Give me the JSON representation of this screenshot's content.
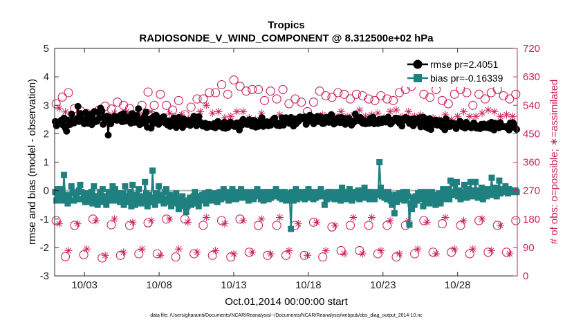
{
  "chart_data": {
    "type": "line",
    "title": "Tropics",
    "subtitle": "RADIOSONDE_V_WIND_COMPONENT @ 8.312500e+02 hPa",
    "xlabel": "Oct.01,2014 00:00:00 start",
    "ylabel_left": "rmse and bias (model - observation)",
    "ylabel_right": "# of obs: o=possible; ∗=assimilated",
    "footnote": "data file: /Users/gharamti/Documents/NCAR/Reanalysis/~/Documents/NCAR/Reanalysis/webpub/obs_diag_output_2014-10.nc",
    "xlim": [
      1.0,
      32.0
    ],
    "xticks": [
      3,
      8,
      13,
      18,
      23,
      28
    ],
    "xtick_labels": [
      "10/03",
      "10/08",
      "10/13",
      "10/18",
      "10/23",
      "10/28"
    ],
    "ylim_left": [
      -3,
      5
    ],
    "yticks_left": [
      "-3",
      "-2",
      "-1",
      "0",
      "1",
      "2",
      "3",
      "4",
      "5"
    ],
    "ylim_right": [
      0,
      720
    ],
    "yticks_right": [
      "0",
      "90",
      "180",
      "270",
      "360",
      "450",
      "540",
      "630",
      "720"
    ],
    "colors": {
      "rmse": "#000000",
      "bias": "#1f8080",
      "obs": "#cc1f5a",
      "zero_line": "#b4b4b4"
    },
    "series": [
      {
        "name": "rmse",
        "legend": "rmse pr=2.4051",
        "axis": "left",
        "values": [
          2.43,
          2.28,
          2.38,
          2.42,
          2.35,
          2.48,
          2.31,
          2.55,
          2.2,
          2.09,
          2.48,
          2.32,
          2.33,
          2.69,
          2.45,
          2.38,
          2.45,
          2.52,
          2.96,
          2.43,
          2.71,
          2.48,
          2.5,
          2.35,
          2.74,
          2.44,
          2.37,
          2.55,
          2.68,
          2.32,
          2.46,
          2.78,
          2.42,
          2.44,
          2.75,
          2.55,
          2.9,
          2.8,
          2.33,
          2.58,
          2.46,
          2.62,
          1.95,
          2.58,
          2.35,
          2.46,
          2.5,
          2.61,
          2.48,
          2.47,
          2.58,
          2.56,
          2.66,
          2.42,
          2.71,
          2.44,
          2.56,
          2.59,
          2.45,
          2.5,
          2.37,
          2.71,
          2.57,
          2.4,
          2.64,
          2.42,
          2.88,
          2.32,
          2.51,
          2.37,
          2.42,
          2.64,
          2.76,
          2.23,
          2.5,
          2.48,
          2.2,
          2.56,
          2.37,
          2.63,
          2.65,
          2.48,
          2.33,
          2.42,
          2.55,
          2.48,
          2.6,
          2.38,
          2.44,
          2.31,
          2.45,
          2.26,
          2.41,
          2.33,
          2.55,
          2.27,
          2.22,
          2.49,
          2.57,
          2.31,
          2.44,
          2.22,
          2.52,
          2.32,
          2.41,
          2.35,
          2.47,
          2.29,
          2.46,
          2.39,
          2.61,
          2.37,
          2.28,
          2.45,
          2.6,
          2.41,
          2.32,
          2.27,
          2.29,
          2.37,
          2.22,
          2.23,
          2.33,
          2.31,
          2.26,
          2.24,
          2.36,
          2.21,
          2.25,
          2.43,
          2.31,
          2.26,
          2.28,
          2.21,
          2.4,
          2.19,
          2.36,
          2.22,
          2.27,
          2.41,
          2.3,
          2.34,
          2.26,
          2.26,
          2.38,
          2.22,
          2.13,
          2.4,
          2.3,
          2.5,
          2.38,
          2.36,
          2.33,
          2.33,
          2.49,
          2.4,
          2.27,
          2.47,
          2.46,
          2.23,
          2.29,
          2.26,
          2.34,
          2.48,
          2.56,
          2.26,
          2.34,
          2.32,
          2.42,
          2.28,
          2.41,
          2.3,
          2.4,
          2.51,
          2.55,
          2.36,
          2.29,
          2.37,
          2.28,
          2.37,
          2.56,
          2.3,
          2.54,
          2.56,
          2.43,
          2.4,
          2.36,
          2.57,
          2.48,
          2.27,
          2.5,
          2.35,
          2.53,
          2.44,
          2.59,
          2.54,
          2.52,
          2.56,
          2.59,
          2.33,
          2.48,
          2.44,
          2.65,
          2.58,
          2.58,
          2.35,
          2.49,
          2.47,
          2.61,
          2.43,
          2.6,
          2.44,
          2.36,
          2.36,
          2.5,
          2.58,
          2.49,
          2.4,
          2.5,
          2.67,
          2.45,
          2.34,
          2.52,
          2.4,
          2.48,
          2.56,
          2.39,
          2.57,
          2.44,
          2.54,
          2.33,
          2.44,
          2.53,
          2.54,
          2.42,
          2.3,
          2.44,
          2.4,
          2.69,
          2.48,
          2.5,
          2.46,
          2.57,
          2.41,
          2.37,
          2.46,
          2.35,
          2.36,
          2.41,
          2.37,
          2.54,
          2.48,
          2.58,
          2.35,
          2.39,
          2.44,
          2.36,
          2.5,
          2.43,
          2.39,
          2.52,
          2.43,
          2.41,
          2.44,
          2.58,
          2.41,
          2.34,
          2.39,
          2.48,
          2.48,
          2.55,
          2.46,
          2.54,
          2.37,
          2.45,
          2.27,
          2.51,
          2.47,
          2.57,
          2.49,
          2.53,
          2.36,
          2.42,
          2.52,
          2.28,
          2.52,
          2.47,
          2.39,
          2.47,
          2.56,
          2.24,
          2.43,
          2.58,
          2.47,
          2.23,
          2.51,
          2.19,
          2.53,
          2.15,
          2.45,
          2.36,
          2.33,
          2.48,
          2.3,
          2.41,
          2.46,
          2.28,
          2.24,
          2.33,
          2.14,
          2.52,
          2.38,
          2.31,
          2.25,
          2.38,
          2.35,
          2.36,
          2.35,
          2.18,
          2.26,
          2.3,
          2.44,
          2.36,
          2.24,
          2.32,
          2.2,
          2.4,
          2.28,
          2.25,
          2.3,
          2.21,
          2.24,
          2.38,
          2.31,
          2.2,
          2.25,
          2.19,
          2.18,
          2.33,
          2.22,
          2.34,
          2.3,
          2.22,
          2.25,
          2.35,
          2.19,
          2.4,
          2.24,
          2.13,
          2.37,
          2.29,
          2.29,
          2.21,
          2.39,
          2.26,
          2.25,
          2.25,
          2.24,
          2.22,
          2.27,
          2.13,
          2.38,
          2.23,
          2.39,
          2.32,
          2.2,
          2.15
        ]
      },
      {
        "name": "bias",
        "legend": "bias pr=-0.16339",
        "axis": "left",
        "values": [
          -0.05,
          -0.35,
          0.05,
          -0.25,
          0.05,
          -0.1,
          -0.35,
          0.55,
          -0.25,
          -0.15,
          -0.45,
          -0.2,
          -0.35,
          0.15,
          -0.05,
          -0.35,
          -0.1,
          -0.25,
          -0.3,
          0.0,
          0.2,
          -0.05,
          -0.3,
          -0.2,
          -0.4,
          -0.1,
          -0.3,
          -0.2,
          -0.4,
          -0.05,
          -0.45,
          0.15,
          -0.35,
          -0.2,
          -0.5,
          -0.3,
          -0.05,
          -0.35,
          0.05,
          -0.4,
          -0.2,
          -0.5,
          -0.3,
          -0.05,
          -0.2,
          -0.35,
          0.15,
          -0.25,
          0.05,
          -0.35,
          -0.1,
          -0.3,
          -0.4,
          -0.1,
          -0.2,
          -0.5,
          0.15,
          -0.3,
          -0.4,
          -0.2,
          -0.05,
          -0.55,
          0.2,
          -0.3,
          -0.5,
          -0.15,
          -0.35,
          0.05,
          -0.25,
          -0.45,
          -0.2,
          -0.35,
          0.3,
          -0.1,
          -0.55,
          -0.15,
          -0.3,
          -0.4,
          0.7,
          -0.25,
          -0.5,
          -0.1,
          -0.3,
          0.15,
          -0.15,
          -0.35,
          -0.2,
          -0.45,
          -0.05,
          0.05,
          -0.4,
          -0.3,
          -0.15,
          -0.55,
          -0.3,
          -0.4,
          -0.25,
          -0.1,
          -0.45,
          -0.65,
          -0.3,
          -0.5,
          -0.2,
          -0.35,
          -0.55,
          -0.75,
          -0.55,
          -0.35,
          -0.25,
          -0.5,
          -0.3,
          -0.2,
          -0.05,
          -0.45,
          -0.3,
          -0.55,
          -0.2,
          -0.35,
          -0.15,
          -0.3,
          -0.1,
          -0.45,
          -0.25,
          -0.05,
          -0.35,
          -0.15,
          -0.35,
          -0.25,
          -0.1,
          -0.3,
          -0.4,
          -0.2,
          -0.05,
          -0.3,
          -0.1,
          0.05,
          -0.25,
          -0.05,
          -0.15,
          -0.35,
          -0.1,
          -0.3,
          0.05,
          -0.2,
          -0.05,
          -0.3,
          -0.1,
          -0.2,
          -0.15,
          0.05,
          -0.25,
          -0.1,
          -0.2,
          -0.05,
          -0.15,
          -0.35,
          -0.1,
          -0.2,
          -0.05,
          -0.3,
          -0.1,
          -0.2,
          0.05,
          -0.15,
          -0.05,
          -0.3,
          -0.1,
          -0.35,
          -0.2,
          -0.05,
          -0.15,
          -0.3,
          -0.05,
          -0.25,
          -0.1,
          -0.05,
          -0.2,
          0.05,
          -0.15,
          -0.05,
          -0.25,
          -0.1,
          -0.3,
          -0.2,
          -0.05,
          -0.35,
          -0.15,
          -0.1,
          -0.3,
          -1.35,
          -0.05,
          -0.35,
          -0.15,
          0.05,
          -0.3,
          -0.1,
          -0.2,
          -0.05,
          -0.25,
          -0.1,
          -0.3,
          -0.05,
          -0.15,
          0.05,
          -0.25,
          -0.1,
          -0.15,
          -0.3,
          -0.05,
          -0.25,
          -0.1,
          -0.2,
          -0.05,
          0.05,
          -0.2,
          -0.1,
          -0.5,
          -0.15,
          -0.3,
          -0.05,
          -0.1,
          -0.25,
          -0.05,
          -0.15,
          -0.3,
          -0.1,
          -0.2,
          -0.05,
          -0.15,
          -0.35,
          0.1,
          -0.2,
          -0.05,
          -0.15,
          -0.3,
          -0.2,
          0.05,
          -0.1,
          -0.35,
          -0.2,
          -0.05,
          -0.25,
          -0.15,
          0.0,
          -0.3,
          -0.1,
          -0.2,
          -0.05,
          0.1,
          -0.25,
          -0.1,
          -0.05,
          -0.3,
          -0.15,
          -0.05,
          -0.2,
          -0.3,
          -0.1,
          -0.15,
          -0.05,
          1.0,
          0.1,
          -0.2,
          -0.05,
          -0.25,
          -0.1,
          -0.3,
          -0.05,
          -0.15,
          -0.35,
          -0.5,
          -0.25,
          -0.8,
          -0.15,
          -0.4,
          -0.25,
          -0.1,
          -0.3,
          -0.2,
          -0.05,
          -0.35,
          -0.15,
          -0.05,
          -0.2,
          -1.2,
          -0.45,
          -0.65,
          -0.25,
          -0.5,
          -0.2,
          -0.35,
          -0.1,
          -0.25,
          -0.05,
          -0.3,
          -0.55,
          -0.2,
          -0.05,
          -0.35,
          -0.15,
          -0.45,
          -0.25,
          -0.05,
          -0.3,
          -0.15,
          -0.5,
          -0.2,
          -0.35,
          -0.1,
          -0.45,
          -0.25,
          0.05,
          -0.3,
          -0.1,
          -0.2,
          0.05,
          -0.3,
          0.35,
          -0.15,
          -0.05,
          0.25,
          -0.1,
          0.3,
          -0.2,
          0.0,
          -0.3,
          -0.15,
          -0.05,
          0.2,
          -0.1,
          -0.25,
          0.05,
          -0.15,
          0.3,
          0.0,
          -0.2,
          -0.05,
          0.3,
          -0.1,
          -0.25,
          0.0,
          -0.15,
          0.1,
          -0.3,
          -0.05,
          0.0,
          -0.2,
          0.05,
          -0.1,
          -0.05,
          0.45,
          -0.15,
          -0.05,
          0.1,
          -0.2,
          0.0,
          0.35,
          -0.1,
          0.05,
          0.0,
          -0.05,
          0.15,
          0.0,
          -0.1,
          0.05,
          0.0,
          -0.05,
          0.0,
          -0.05,
          0.0,
          -0.05
        ]
      },
      {
        "name": "obs_possible",
        "legend": "o=possible",
        "axis": "right",
        "values": [
          545,
          553,
          566,
          519,
          580,
          569,
          530,
          556,
          522,
          538,
          514,
          520,
          510,
          500,
          525,
          548,
          537,
          561,
          528,
          580,
          550,
          565,
          540,
          522,
          530,
          525,
          510,
          535,
          540,
          560,
          582,
          545,
          540,
          560,
          575,
          548,
          540,
          530,
          525,
          545,
          555,
          540,
          510,
          502,
          534,
          560,
          560,
          540,
          560,
          600,
          580,
          590,
          580,
          595,
          605,
          580,
          575,
          595,
          620,
          610,
          600,
          600,
          585,
          605,
          590,
          560,
          590,
          580,
          555,
          565,
          585,
          590,
          560,
          560,
          590,
          540,
          545,
          555,
          560,
          500,
          550,
          540,
          520,
          535,
          550,
          560,
          585,
          595,
          570,
          570,
          565,
          560,
          580,
          575,
          575,
          580,
          560,
          560,
          575,
          575,
          570,
          560,
          560,
          565,
          555,
          560,
          570,
          560,
          560,
          545,
          555,
          570,
          580,
          570,
          590,
          580,
          600,
          610,
          615,
          590,
          575,
          570,
          565,
          580,
          590,
          560,
          555,
          540,
          545,
          555,
          575,
          580,
          590,
          600,
          580,
          560,
          540,
          560,
          575,
          565,
          560,
          555,
          580,
          600,
          590,
          580,
          570,
          555,
          560,
          575,
          575
        ]
      },
      {
        "name": "obs_assimilated",
        "legend": "∗=assimilated",
        "axis": "right",
        "values": [
          515,
          530,
          510,
          519,
          505,
          495,
          490,
          500,
          520,
          510,
          500,
          505,
          480,
          490,
          495,
          510,
          520,
          500,
          505,
          515,
          490,
          500,
          510,
          520,
          500,
          495,
          505,
          510,
          500,
          515,
          530,
          520,
          510,
          505,
          495,
          500,
          510,
          515,
          525,
          505,
          500,
          510,
          490,
          495,
          500,
          505,
          510,
          520,
          530,
          540,
          525,
          515,
          505,
          520,
          510,
          500,
          495,
          505,
          515,
          520,
          510,
          520,
          505,
          500,
          510,
          495,
          505,
          515,
          500,
          485,
          490,
          495,
          505,
          510,
          500,
          495,
          505,
          500,
          490,
          500,
          510,
          505,
          495,
          500,
          505,
          495,
          500,
          510,
          505,
          495,
          500,
          505,
          510,
          520,
          515,
          505,
          500,
          510,
          520,
          525,
          515,
          505,
          500,
          510,
          520,
          515,
          505,
          500,
          510,
          520,
          530,
          525,
          515,
          505,
          510,
          520,
          515,
          505,
          500,
          510,
          500,
          495,
          505,
          500,
          490,
          495,
          505,
          510,
          500,
          495,
          500,
          505,
          510,
          520,
          515,
          505,
          500,
          505,
          510,
          515,
          520,
          525,
          530,
          520,
          515,
          505,
          500,
          510,
          515,
          505,
          495
        ]
      }
    ],
    "legend_position": "top-right"
  }
}
